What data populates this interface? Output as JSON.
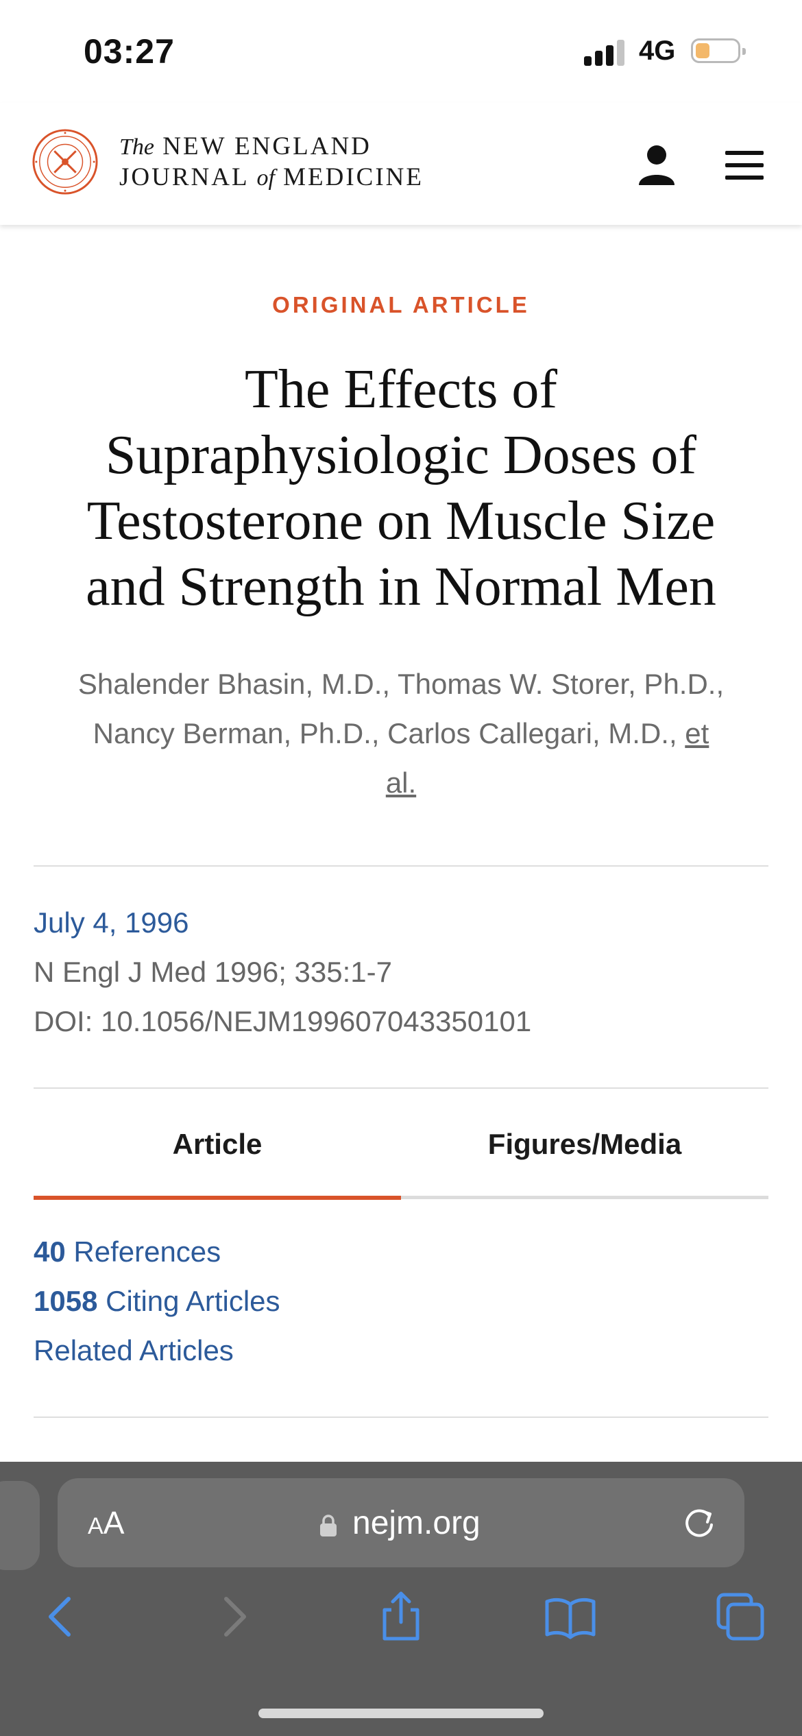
{
  "status_bar": {
    "time": "03:27",
    "network": "4G"
  },
  "header": {
    "journal_line1_prefix": "The",
    "journal_line1": "NEW ENGLAND",
    "journal_line2_a": "JOURNAL",
    "journal_line2_of": "of",
    "journal_line2_b": "MEDICINE",
    "seal_text": "NEW ENGLAND JOURNAL OF MEDICINE 1812"
  },
  "article": {
    "kicker": "ORIGINAL ARTICLE",
    "title_lines": [
      "The Effects of",
      "Supraphysiologic Doses of",
      "Testosterone on Muscle Size",
      "and Strength in Normal Men"
    ],
    "authors": "Shalender Bhasin, M.D., Thomas W. Storer, Ph.D., Nancy Berman, Ph.D., Carlos Callegari, M.D.,",
    "et_al": "et al.",
    "date": "July 4, 1996",
    "citation": "N Engl J Med 1996; 335:1-7",
    "doi": "DOI: 10.1056/NEJM199607043350101"
  },
  "tabs": [
    {
      "label": "Article",
      "active": true
    },
    {
      "label": "Figures/Media",
      "active": false
    }
  ],
  "links": {
    "references_count": "40",
    "references_label": "References",
    "citing_count": "1058",
    "citing_label": "Citing Articles",
    "related_label": "Related Articles"
  },
  "browser": {
    "text_size_small": "A",
    "text_size_large": "A",
    "url": "nejm.org"
  },
  "icons": {
    "user": "user-icon",
    "menu": "hamburger-menu-icon",
    "lock": "lock-icon",
    "reload": "reload-icon",
    "back": "chevron-left-icon",
    "forward": "chevron-right-icon",
    "share": "share-icon",
    "bookmarks": "book-icon",
    "tabs": "tabs-icon"
  },
  "colors": {
    "accent_red": "#d9532a",
    "link_blue": "#2c5a9a",
    "safari_blue": "#4a8fe8",
    "browser_bar": "#5b5b5b",
    "battery": "#f3b86a"
  }
}
